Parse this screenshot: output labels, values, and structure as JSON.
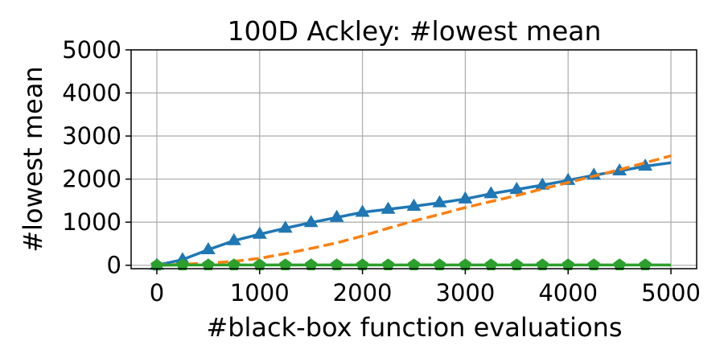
{
  "chart_data": {
    "type": "line",
    "title": "100D Ackley: #lowest mean",
    "xlabel": "#black-box function evaluations",
    "ylabel": "#lowest mean",
    "xlim": [
      -250,
      5250
    ],
    "ylim": [
      -80,
      5000
    ],
    "xticks": [
      0,
      1000,
      2000,
      3000,
      4000,
      5000
    ],
    "yticks": [
      0,
      1000,
      2000,
      3000,
      4000,
      5000
    ],
    "grid": true,
    "series": [
      {
        "color": "#1f77b4",
        "linestyle": "solid",
        "marker": "triangle",
        "x": [
          0,
          250,
          500,
          750,
          1000,
          1250,
          1500,
          1750,
          2000,
          2250,
          2500,
          2750,
          3000,
          3250,
          3500,
          3750,
          4000,
          4250,
          4500,
          4750,
          5000
        ],
        "y": [
          0,
          130,
          360,
          570,
          720,
          860,
          990,
          1110,
          1230,
          1300,
          1370,
          1450,
          1540,
          1660,
          1760,
          1860,
          1970,
          2090,
          2190,
          2300,
          2380
        ],
        "marker_x": [
          0,
          250,
          500,
          750,
          1000,
          1250,
          1500,
          1750,
          2000,
          2250,
          2500,
          2750,
          3000,
          3250,
          3500,
          3750,
          4000,
          4250,
          4500,
          4750
        ]
      },
      {
        "color": "#ff7f0e",
        "linestyle": "dashed",
        "marker": "none",
        "x": [
          0,
          250,
          500,
          750,
          1000,
          1250,
          1500,
          1750,
          2000,
          2250,
          2500,
          2750,
          3000,
          3250,
          3500,
          3750,
          4000,
          4250,
          4500,
          4750,
          5000
        ],
        "y": [
          0,
          20,
          50,
          90,
          160,
          270,
          390,
          520,
          680,
          860,
          1030,
          1180,
          1340,
          1480,
          1620,
          1770,
          1920,
          2070,
          2220,
          2380,
          2540
        ]
      },
      {
        "color": "#2ca02c",
        "linestyle": "solid",
        "marker": "pentagon",
        "x": [
          0,
          250,
          500,
          750,
          1000,
          1250,
          1500,
          1750,
          2000,
          2250,
          2500,
          2750,
          3000,
          3250,
          3500,
          3750,
          4000,
          4250,
          4500,
          4750,
          5000
        ],
        "y": [
          0,
          5,
          5,
          5,
          5,
          5,
          5,
          5,
          5,
          5,
          5,
          5,
          5,
          5,
          5,
          5,
          5,
          5,
          5,
          5,
          5
        ],
        "marker_x": [
          0,
          250,
          500,
          750,
          1000,
          1250,
          1500,
          1750,
          2000,
          2250,
          2500,
          2750,
          3000,
          3250,
          3500,
          3750,
          4000,
          4250,
          4500,
          4750
        ]
      }
    ]
  }
}
